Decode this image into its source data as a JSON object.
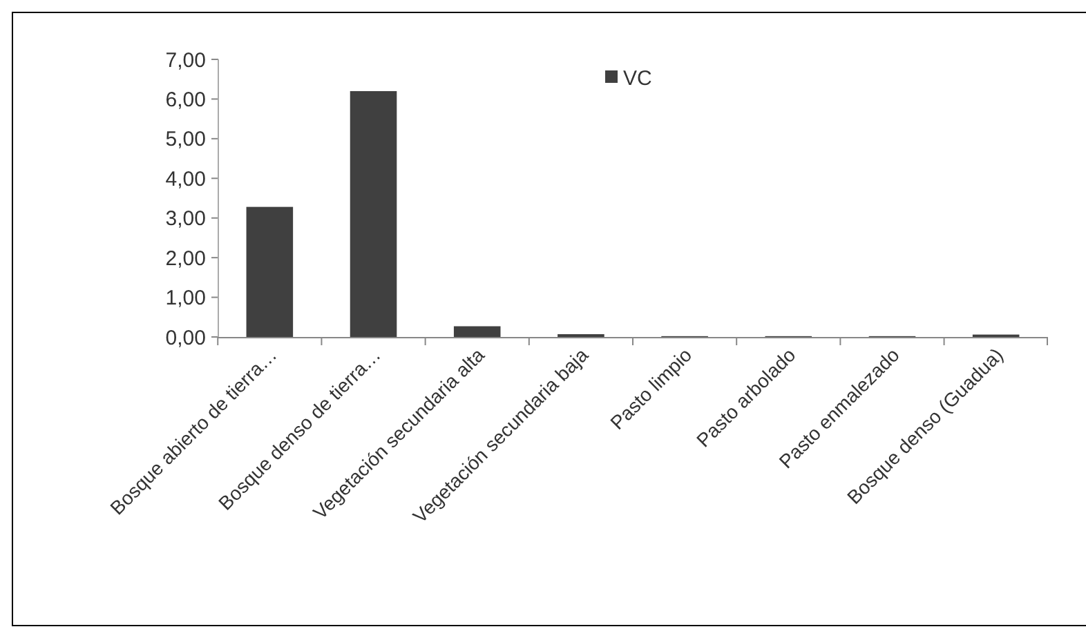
{
  "chart_data": {
    "type": "bar",
    "categories": [
      "Bosque abierto de tierra…",
      "Bosque denso de tierra…",
      "Vegetación secundaria alta",
      "Vegetación secundaria baja",
      "Pasto limpio",
      "Pasto arbolado",
      "Pasto enmalezado",
      "Bosque denso (Guadua)"
    ],
    "series": [
      {
        "name": "VC",
        "color": "#404040",
        "values": [
          3.28,
          6.2,
          0.27,
          0.07,
          0.02,
          0.02,
          0.02,
          0.06
        ]
      }
    ],
    "ylim": [
      0,
      7
    ],
    "yticks": [
      {
        "value": 0,
        "label": "0,00"
      },
      {
        "value": 1,
        "label": "1,00"
      },
      {
        "value": 2,
        "label": "2,00"
      },
      {
        "value": 3,
        "label": "3,00"
      },
      {
        "value": 4,
        "label": "4,00"
      },
      {
        "value": 5,
        "label": "5,00"
      },
      {
        "value": 6,
        "label": "6,00"
      },
      {
        "value": 7,
        "label": "7,00"
      }
    ],
    "legend": "top"
  }
}
